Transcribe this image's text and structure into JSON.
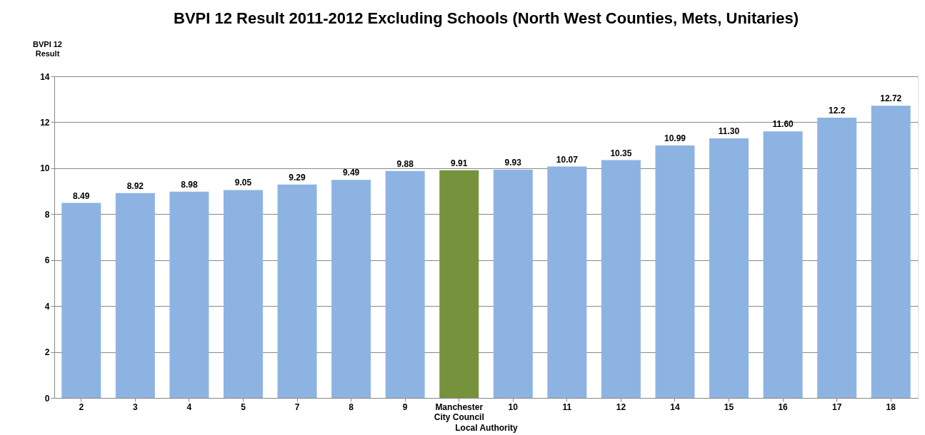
{
  "chart_data": {
    "type": "bar",
    "title": "BVPI 12 Result 2011-2012 Excluding Schools (North West Counties, Mets, Unitaries)",
    "xlabel": "Local Authority",
    "ylabel": "BVPI 12 Result",
    "categories": [
      "2",
      "3",
      "4",
      "5",
      "7",
      "8",
      "9",
      "Manchester City Council",
      "10",
      "11",
      "12",
      "14",
      "15",
      "16",
      "17",
      "18"
    ],
    "values": [
      8.49,
      8.92,
      8.98,
      9.05,
      9.29,
      9.49,
      9.88,
      9.91,
      9.93,
      10.07,
      10.35,
      10.99,
      11.3,
      11.6,
      12.2,
      12.72
    ],
    "value_labels": [
      "8.49",
      "8.92",
      "8.98",
      "9.05",
      "9.29",
      "9.49",
      "9.88",
      "9.91",
      "9.93",
      "10.07",
      "10.35",
      "10.99",
      "11.30",
      "11.60",
      "12.2",
      "12.72"
    ],
    "colors": [
      "#8db3e2",
      "#8db3e2",
      "#8db3e2",
      "#8db3e2",
      "#8db3e2",
      "#8db3e2",
      "#8db3e2",
      "#76923c",
      "#8db3e2",
      "#8db3e2",
      "#8db3e2",
      "#8db3e2",
      "#8db3e2",
      "#8db3e2",
      "#8db3e2",
      "#8db3e2"
    ],
    "ylim": [
      0,
      14
    ],
    "yticks": [
      0,
      2,
      4,
      6,
      8,
      10,
      12,
      14
    ],
    "grid": "y"
  }
}
